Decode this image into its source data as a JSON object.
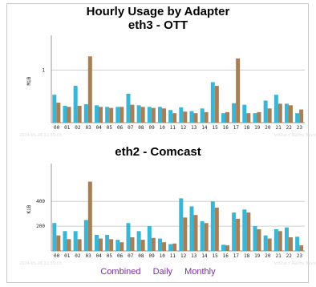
{
  "charts": {
    "title": "Hourly Usage by Adapter",
    "links": {
      "combined": "Combined",
      "daily": "Daily",
      "monthly": "Monthly"
    }
  },
  "colors": {
    "series1": "#39b6d6",
    "series2": "#a57f57",
    "grid": "#cfcfcf"
  },
  "chart_data": [
    {
      "type": "bar",
      "title": "eth3 - OTT",
      "ylabel": "MiB",
      "ylim": [
        0,
        1.6
      ],
      "yticks": [
        {
          "v": 1,
          "label": "1"
        }
      ],
      "grid": true,
      "categories": [
        "00",
        "01",
        "02",
        "03",
        "04",
        "05",
        "06",
        "07",
        "08",
        "09",
        "10",
        "11",
        "12",
        "13",
        "14",
        "15",
        "16",
        "17",
        "18",
        "19",
        "20",
        "21",
        "22",
        "23"
      ],
      "series": [
        {
          "values": [
            0.53,
            0.32,
            0.7,
            0.35,
            0.33,
            0.3,
            0.3,
            0.55,
            0.33,
            0.3,
            0.3,
            0.24,
            0.29,
            0.22,
            0.27,
            0.77,
            0.18,
            0.37,
            0.34,
            0.18,
            0.42,
            0.53,
            0.36,
            0.18
          ]
        },
        {
          "values": [
            0.38,
            0.3,
            0.32,
            1.26,
            0.3,
            0.28,
            0.3,
            0.34,
            0.3,
            0.28,
            0.27,
            0.18,
            0.21,
            0.18,
            0.2,
            0.7,
            0.2,
            1.22,
            0.18,
            0.2,
            0.27,
            0.36,
            0.33,
            0.25
          ]
        }
      ],
      "footer_left": "2024-05-26 22:55:03",
      "footer_right": "vnStat / Teemu Toivola"
    },
    {
      "type": "bar",
      "title": "eth2 - Comcast",
      "ylabel": "KiB",
      "ylim": [
        0,
        680
      ],
      "yticks": [
        {
          "v": 200,
          "label": "200"
        },
        {
          "v": 400,
          "label": "400"
        }
      ],
      "grid": true,
      "categories": [
        "00",
        "01",
        "02",
        "03",
        "04",
        "05",
        "06",
        "07",
        "08",
        "09",
        "10",
        "11",
        "12",
        "13",
        "14",
        "15",
        "16",
        "17",
        "18",
        "19",
        "20",
        "21",
        "22",
        "23"
      ],
      "series": [
        {
          "values": [
            225,
            160,
            160,
            250,
            130,
            130,
            90,
            225,
            160,
            200,
            100,
            55,
            425,
            360,
            240,
            400,
            50,
            310,
            335,
            200,
            125,
            175,
            190,
            115
          ]
        },
        {
          "values": [
            125,
            95,
            95,
            560,
            100,
            95,
            70,
            110,
            90,
            105,
            70,
            60,
            270,
            290,
            225,
            350,
            45,
            260,
            310,
            175,
            100,
            160,
            110,
            45
          ]
        }
      ],
      "footer_left": "2024-05-26 22:55:03",
      "footer_right": "vnStat / Teemu Toivola"
    }
  ]
}
